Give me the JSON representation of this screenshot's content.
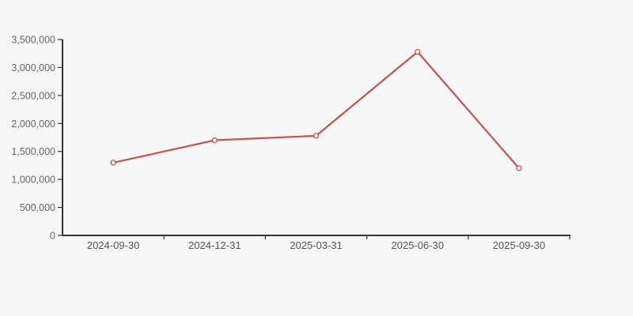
{
  "page": {
    "background_color": "#f7f7f7"
  },
  "chart_data": {
    "type": "line",
    "title": "",
    "xlabel": "",
    "ylabel": "",
    "categories": [
      "2024-09-30",
      "2024-12-31",
      "2025-03-31",
      "2025-06-30",
      "2025-09-30"
    ],
    "series": [
      {
        "name": "value",
        "values": [
          1300000,
          1700000,
          1780000,
          3280000,
          1200000
        ]
      }
    ],
    "ylim": [
      0,
      3500000
    ],
    "y_tick_step": 500000,
    "y_tick_labels": [
      "0",
      "500,000",
      "1,000,000",
      "1,500,000",
      "2,000,000",
      "2,500,000",
      "3,000,000",
      "3,500,000"
    ],
    "grid": false,
    "legend_position": "none",
    "marker": "open-circle"
  },
  "colors": {
    "background": "#f7f7f7",
    "axis": "#333333",
    "y_tick_label": "#666666",
    "x_tick_label": "#555555",
    "line": "#c5524e",
    "marker_fill": "#fcfcfc"
  }
}
